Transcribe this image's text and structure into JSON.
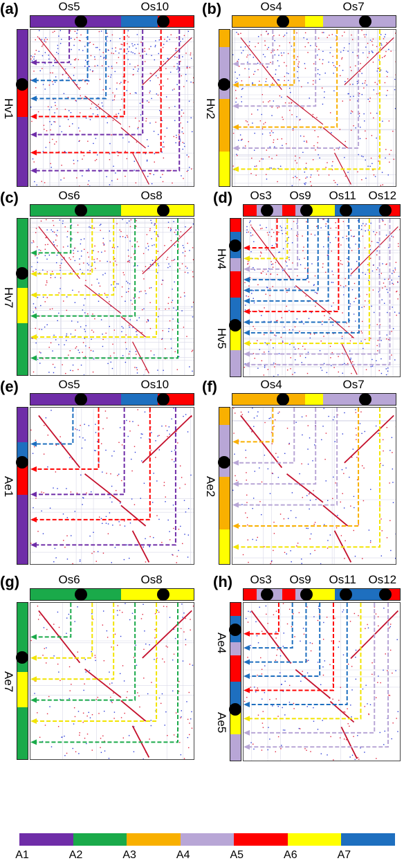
{
  "colors": {
    "A1": "#6f2da8",
    "A2": "#1aaa4a",
    "A3": "#f9b000",
    "A4": "#b8a6d6",
    "A5": "#ff0000",
    "A6": "#ffff00",
    "A7": "#1e6fbf"
  },
  "legend": {
    "items": [
      "A1",
      "A2",
      "A3",
      "A4",
      "A5",
      "A6",
      "A7"
    ]
  },
  "panels": [
    {
      "id": "a",
      "label": "(a)",
      "top_labels": [
        "Os5",
        "Os10"
      ],
      "left_labels": [
        "Hv1"
      ],
      "top_bar": [
        "A1",
        "A1",
        "A1",
        "A1",
        "A1",
        "A7",
        "A7",
        "A5",
        "A5"
      ],
      "left_bar": [
        "A1",
        "A1",
        "A1",
        "A5",
        "A5",
        "A1",
        "A1",
        "A1",
        "A1"
      ],
      "arrows": [
        "A1",
        "A7",
        "A7",
        "A5",
        "A1",
        "A5",
        "A1"
      ]
    },
    {
      "id": "b",
      "label": "(b)",
      "top_labels": [
        "Os4",
        "Os7"
      ],
      "left_labels": [
        "Hv2"
      ],
      "top_bar": [
        "A3",
        "A3",
        "A3",
        "A3",
        "A6",
        "A4",
        "A4",
        "A4",
        "A4"
      ],
      "left_bar": [
        "A3",
        "A4",
        "A4",
        "A4",
        "A3",
        "A3",
        "A3",
        "A6",
        "A6"
      ],
      "arrows": [
        "A4",
        "A3",
        "A4",
        "A3",
        "A4",
        "A6"
      ]
    },
    {
      "id": "c",
      "label": "(c)",
      "top_labels": [
        "Os6",
        "Os8"
      ],
      "left_labels": [
        "Hv7"
      ],
      "top_bar": [
        "A2",
        "A2",
        "A2",
        "A2",
        "A2",
        "A6",
        "A6",
        "A6",
        "A6"
      ],
      "left_bar": [
        "A2",
        "A2",
        "A2",
        "A2",
        "A6",
        "A6",
        "A2",
        "A2",
        "A2"
      ],
      "arrows": [
        "A2",
        "A6",
        "A6",
        "A2",
        "A6",
        "A2"
      ]
    },
    {
      "id": "d",
      "label": "(d)",
      "top_labels": [
        "Os3",
        "Os9",
        "Os11",
        "Os12"
      ],
      "left_labels": [
        "Hv4",
        "Hv5"
      ],
      "top_bar": [
        "A5",
        "A4",
        "A4",
        "A5",
        "A4",
        "A6",
        "A6",
        "A7",
        "A7",
        "A7",
        "A7",
        "A5"
      ],
      "left_bar": [
        "A5",
        "A7",
        "A7",
        "A4",
        "A5",
        "A5",
        "A7",
        "A7",
        "A6",
        "A6",
        "A4",
        "A4"
      ],
      "arrows": [
        "A5",
        "A6",
        "A4",
        "A7",
        "A7",
        "A7",
        "A5",
        "A7",
        "A7",
        "A6",
        "A4",
        "A4"
      ]
    },
    {
      "id": "e",
      "label": "(e)",
      "top_labels": [
        "Os5",
        "Os10"
      ],
      "left_labels": [
        "Ae1"
      ],
      "top_bar": [
        "A1",
        "A1",
        "A1",
        "A1",
        "A1",
        "A7",
        "A7",
        "A5",
        "A5"
      ],
      "left_bar": [
        "A1",
        "A1",
        "A7",
        "A5",
        "A5",
        "A1",
        "A1",
        "A1",
        "A1"
      ],
      "arrows": [
        "A7",
        "A5",
        "A1",
        "A5",
        "A1"
      ]
    },
    {
      "id": "f",
      "label": "(f)",
      "top_labels": [
        "Os4",
        "Os7"
      ],
      "left_labels": [
        "Ae2"
      ],
      "top_bar": [
        "A3",
        "A3",
        "A3",
        "A3",
        "A6",
        "A4",
        "A4",
        "A4",
        "A4"
      ],
      "left_bar": [
        "A3",
        "A4",
        "A4",
        "A4",
        "A3",
        "A3",
        "A3",
        "A6",
        "A6"
      ],
      "arrows": [
        "A3",
        "A4",
        "A4",
        "A4",
        "A3",
        "A6"
      ]
    },
    {
      "id": "g",
      "label": "(g)",
      "top_labels": [
        "Os6",
        "Os8"
      ],
      "left_labels": [
        "Ae7"
      ],
      "top_bar": [
        "A2",
        "A2",
        "A2",
        "A2",
        "A2",
        "A6",
        "A6",
        "A6",
        "A6"
      ],
      "left_bar": [
        "A2",
        "A2",
        "A2",
        "A2",
        "A6",
        "A6",
        "A2",
        "A2",
        "A2"
      ],
      "arrows": [
        "A2",
        "A6",
        "A6",
        "A2",
        "A6",
        "A2"
      ]
    },
    {
      "id": "h",
      "label": "(h)",
      "top_labels": [
        "Os3",
        "Os9",
        "Os11",
        "Os12"
      ],
      "left_labels": [
        "Ae4",
        "Ae5"
      ],
      "top_bar": [
        "A5",
        "A4",
        "A4",
        "A5",
        "A4",
        "A6",
        "A6",
        "A7",
        "A7",
        "A7",
        "A7",
        "A5"
      ],
      "left_bar": [
        "A5",
        "A7",
        "A7",
        "A4",
        "A5",
        "A5",
        "A7",
        "A7",
        "A6",
        "A6",
        "A4",
        "A4"
      ],
      "arrows": [
        "A5",
        "A7",
        "A7",
        "A7",
        "A5",
        "A7",
        "A6",
        "A4",
        "A4"
      ]
    }
  ]
}
